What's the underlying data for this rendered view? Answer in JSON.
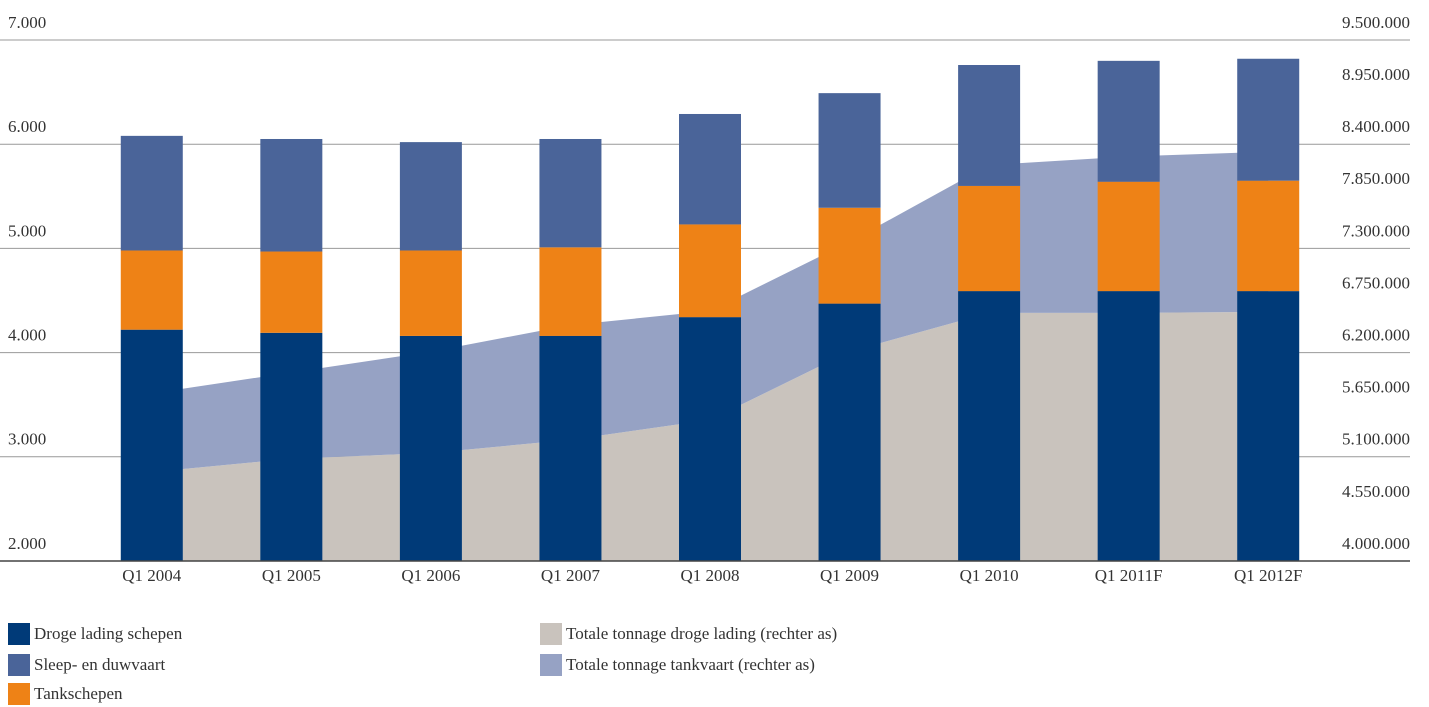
{
  "chart_data": {
    "type": "bar",
    "categories": [
      "Q1 2004",
      "Q1 2005",
      "Q1 2006",
      "Q1 2007",
      "Q1 2008",
      "Q1 2009",
      "Q1 2010",
      "Q1 2011F",
      "Q1 2012F"
    ],
    "series": [
      {
        "name": "Droge lading schepen",
        "color": "#003a78",
        "type": "bar",
        "values": [
          4220,
          4190,
          4160,
          4160,
          4340,
          4470,
          4590,
          4590,
          4590
        ]
      },
      {
        "name": "Tankschepen",
        "color": "#ee8216",
        "type": "bar",
        "values": [
          760,
          780,
          820,
          850,
          890,
          920,
          1010,
          1050,
          1060
        ]
      },
      {
        "name": "Sleep- en duwvaart",
        "color": "#4a6499",
        "type": "bar",
        "values": [
          1100,
          1080,
          1040,
          1040,
          1060,
          1100,
          1160,
          1160,
          1170
        ]
      },
      {
        "name": "Totale tonnage droge lading (rechter as)",
        "color": "#c9c3bd",
        "type": "area",
        "axis": "y2",
        "values": [
          4940000,
          5080000,
          5140000,
          5280000,
          5490000,
          6210000,
          6620000,
          6620000,
          6630000
        ]
      },
      {
        "name": "Totale tonnage tankvaart (rechter as)",
        "color": "#96a2c4",
        "type": "area",
        "axis": "y2",
        "values": [
          830000,
          910000,
          1070000,
          1210000,
          1150000,
          1160000,
          1560000,
          1650000,
          1690000
        ]
      }
    ],
    "ylim": [
      2000,
      7000
    ],
    "yticks": [
      {
        "value": 2000,
        "label": "2.000"
      },
      {
        "value": 3000,
        "label": "3.000"
      },
      {
        "value": 4000,
        "label": "4.000"
      },
      {
        "value": 5000,
        "label": "5.000"
      },
      {
        "value": 6000,
        "label": "6.000"
      },
      {
        "value": 7000,
        "label": "7.000"
      }
    ],
    "y2lim": [
      4000000,
      9500000
    ],
    "y2ticks": [
      {
        "value": 4000000,
        "label": "4.000.000"
      },
      {
        "value": 4550000,
        "label": "4.550.000"
      },
      {
        "value": 5100000,
        "label": "5.100.000"
      },
      {
        "value": 5650000,
        "label": "5.650.000"
      },
      {
        "value": 6200000,
        "label": "6.200.000"
      },
      {
        "value": 6750000,
        "label": "6.750.000"
      },
      {
        "value": 7300000,
        "label": "7.300.000"
      },
      {
        "value": 7850000,
        "label": "7.850.000"
      },
      {
        "value": 8400000,
        "label": "8.400.000"
      },
      {
        "value": 8950000,
        "label": "8.950.000"
      },
      {
        "value": 9500000,
        "label": "9.500.000"
      }
    ],
    "grid": true,
    "legend": "bottom"
  }
}
